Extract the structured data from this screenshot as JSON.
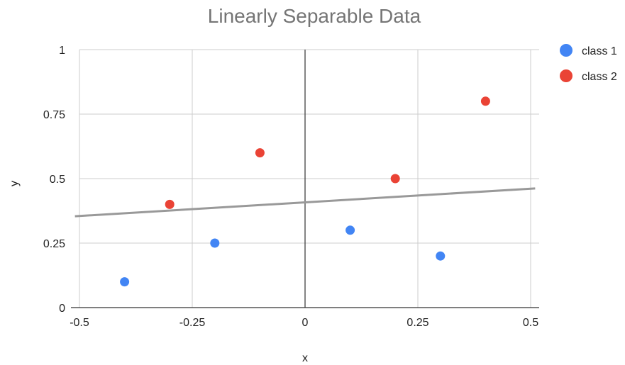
{
  "chart_data": {
    "type": "scatter",
    "title": "Linearly Separable Data",
    "xlabel": "x",
    "ylabel": "y",
    "xlim": [
      -0.5,
      0.5
    ],
    "ylim": [
      0,
      1
    ],
    "x_ticks": [
      "-0.5",
      "-0.25",
      "0",
      "0.25",
      "0.5"
    ],
    "y_ticks": [
      "0",
      "0.25",
      "0.5",
      "0.75",
      "1"
    ],
    "grid": true,
    "legend_position": "right",
    "series": [
      {
        "name": "class 1",
        "color": "#4285f4",
        "points": [
          {
            "x": -0.4,
            "y": 0.1
          },
          {
            "x": -0.2,
            "y": 0.25
          },
          {
            "x": 0.1,
            "y": 0.3
          },
          {
            "x": 0.3,
            "y": 0.2
          }
        ]
      },
      {
        "name": "class 2",
        "color": "#ea4335",
        "points": [
          {
            "x": -0.3,
            "y": 0.4
          },
          {
            "x": -0.1,
            "y": 0.6
          },
          {
            "x": 0.2,
            "y": 0.5
          },
          {
            "x": 0.4,
            "y": 0.8
          }
        ]
      }
    ],
    "separator_line": {
      "color": "#999999",
      "from": {
        "x": -0.51,
        "y": 0.354
      },
      "to": {
        "x": 0.51,
        "y": 0.462
      }
    }
  }
}
